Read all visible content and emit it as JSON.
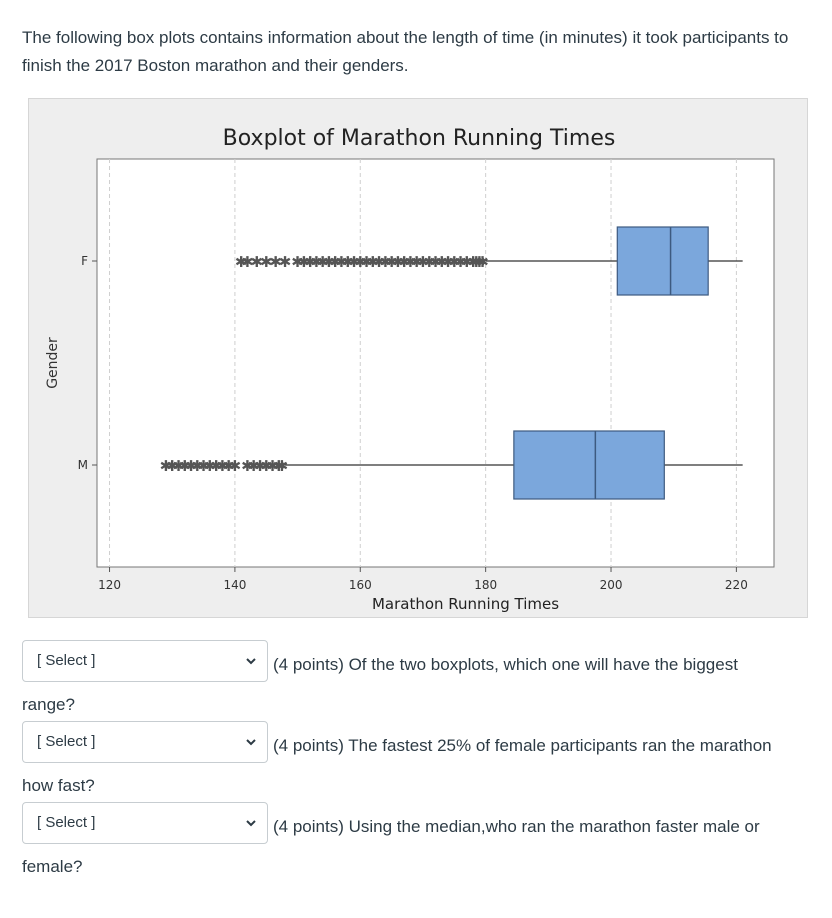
{
  "intro_text": "The following box plots contains information about the length of time (in minutes) it took participants to finish the 2017 Boston marathon and their genders.",
  "chart_data": {
    "type": "box",
    "title": "Boxplot of Marathon Running Times",
    "xlabel": "Marathon Running Times",
    "ylabel": "Gender",
    "xlim": [
      118,
      226
    ],
    "xticks": [
      120,
      140,
      160,
      180,
      200,
      220
    ],
    "categories": [
      "F",
      "M"
    ],
    "grid": true,
    "orientation": "horizontal",
    "series": [
      {
        "category": "F",
        "q1": 201,
        "median": 209.5,
        "q3": 215.5,
        "whisker_low": 180,
        "whisker_high": 221,
        "outliers": [
          141,
          142,
          143.5,
          145,
          146.5,
          148,
          150,
          151,
          152,
          153,
          154,
          155,
          156,
          157,
          158,
          159,
          160,
          161,
          162,
          163,
          164,
          165,
          166,
          167,
          168,
          169,
          170,
          171,
          172,
          173,
          174,
          175,
          176,
          177,
          178,
          178.5,
          179,
          179.5
        ]
      },
      {
        "category": "M",
        "q1": 184.5,
        "median": 197.5,
        "q3": 208.5,
        "whisker_low": 148,
        "whisker_high": 221,
        "outliers": [
          129,
          130,
          131,
          132,
          133,
          134,
          135,
          136,
          137,
          138,
          139,
          140,
          142,
          143,
          144,
          145,
          146,
          147,
          147.5
        ]
      }
    ],
    "box_color": "#7ba7dc",
    "box_stroke": "#3d5a80",
    "outlier_color": "#555555"
  },
  "questions": [
    {
      "select_label": "[ Select ]",
      "text": "(4 points) Of the two boxplots, which one will have the biggest",
      "continuation": "range?"
    },
    {
      "select_label": "[ Select ]",
      "text": "(4 points) The fastest 25% of female participants ran the marathon",
      "continuation": "how fast?"
    },
    {
      "select_label": "[ Select ]",
      "text": "(4 points) Using the median,who ran the marathon faster male or",
      "continuation": "female?"
    }
  ],
  "icons": {
    "dropdown": "chevron-down-icon"
  }
}
